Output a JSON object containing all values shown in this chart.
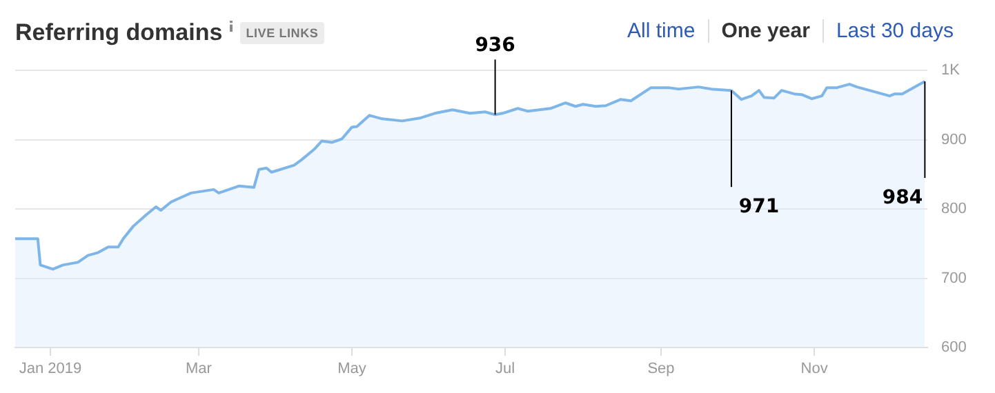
{
  "chart_data": {
    "type": "area",
    "title": "Referring domains",
    "subtitle": "LIVE LINKS",
    "x": [
      "2018-12-18",
      "2018-12-27",
      "2018-12-28",
      "2019-01-02",
      "2019-01-06",
      "2019-01-12",
      "2019-01-16",
      "2019-01-20",
      "2019-01-24",
      "2019-01-28",
      "2019-01-30",
      "2019-02-03",
      "2019-02-08",
      "2019-02-12",
      "2019-02-14",
      "2019-02-18",
      "2019-02-26",
      "2019-03-07",
      "2019-03-09",
      "2019-03-17",
      "2019-03-23",
      "2019-03-25",
      "2019-03-28",
      "2019-03-30",
      "2019-04-08",
      "2019-04-11",
      "2019-04-16",
      "2019-04-19",
      "2019-04-23",
      "2019-04-27",
      "2019-05-01",
      "2019-05-03",
      "2019-05-08",
      "2019-05-13",
      "2019-05-21",
      "2019-05-28",
      "2019-06-03",
      "2019-06-10",
      "2019-06-17",
      "2019-06-23",
      "2019-06-27",
      "2019-06-30",
      "2019-07-06",
      "2019-07-10",
      "2019-07-19",
      "2019-07-25",
      "2019-07-29",
      "2019-08-01",
      "2019-08-06",
      "2019-08-10",
      "2019-08-16",
      "2019-08-20",
      "2019-08-28",
      "2019-09-04",
      "2019-09-08",
      "2019-09-16",
      "2019-09-21",
      "2019-09-29",
      "2019-10-03",
      "2019-10-07",
      "2019-10-10",
      "2019-10-12",
      "2019-10-16",
      "2019-10-19",
      "2019-10-24",
      "2019-10-27",
      "2019-10-31",
      "2019-11-04",
      "2019-11-06",
      "2019-11-10",
      "2019-11-15",
      "2019-11-18",
      "2019-11-26",
      "2019-12-01",
      "2019-12-03",
      "2019-12-06",
      "2019-12-15"
    ],
    "series": [
      {
        "color": "#7eb6e8",
        "values": [
          757,
          757,
          719,
          713,
          719,
          723,
          733,
          737,
          745,
          745,
          757,
          775,
          791,
          803,
          798,
          810,
          823,
          828,
          823,
          833,
          831,
          857,
          859,
          853,
          863,
          871,
          886,
          898,
          896,
          901,
          918,
          919,
          935,
          930,
          927,
          931,
          938,
          943,
          938,
          940,
          936,
          938,
          945,
          941,
          945,
          953,
          948,
          951,
          948,
          949,
          958,
          956,
          975,
          975,
          973,
          976,
          973,
          971,
          958,
          963,
          971,
          961,
          960,
          971,
          966,
          965,
          959,
          963,
          975,
          975,
          980,
          976,
          968,
          963,
          966,
          966,
          984
        ]
      }
    ],
    "xlim": [
      "2018-12-18",
      "2019-12-16"
    ],
    "xticks": [
      {
        "value": "2019-01-01",
        "label": "Jan 2019"
      },
      {
        "value": "2019-03-01",
        "label": "Mar"
      },
      {
        "value": "2019-05-01",
        "label": "May"
      },
      {
        "value": "2019-07-01",
        "label": "Jul"
      },
      {
        "value": "2019-09-01",
        "label": "Sep"
      },
      {
        "value": "2019-11-01",
        "label": "Nov"
      }
    ],
    "ylim": [
      600,
      1000
    ],
    "yticks": [
      600,
      700,
      800,
      900,
      {
        "value": 1000,
        "label": "1K"
      }
    ],
    "grid": "y",
    "legend": false,
    "marker": "none",
    "annotations": [
      {
        "text": "936",
        "x": "2019-06-27",
        "y": 936
      },
      {
        "text": "971",
        "x": "2019-09-29",
        "y": 971
      },
      {
        "text": "984",
        "x": "2019-12-15",
        "y": 984
      },
      "All time",
      "One year",
      "Last 30 days"
    ]
  }
}
